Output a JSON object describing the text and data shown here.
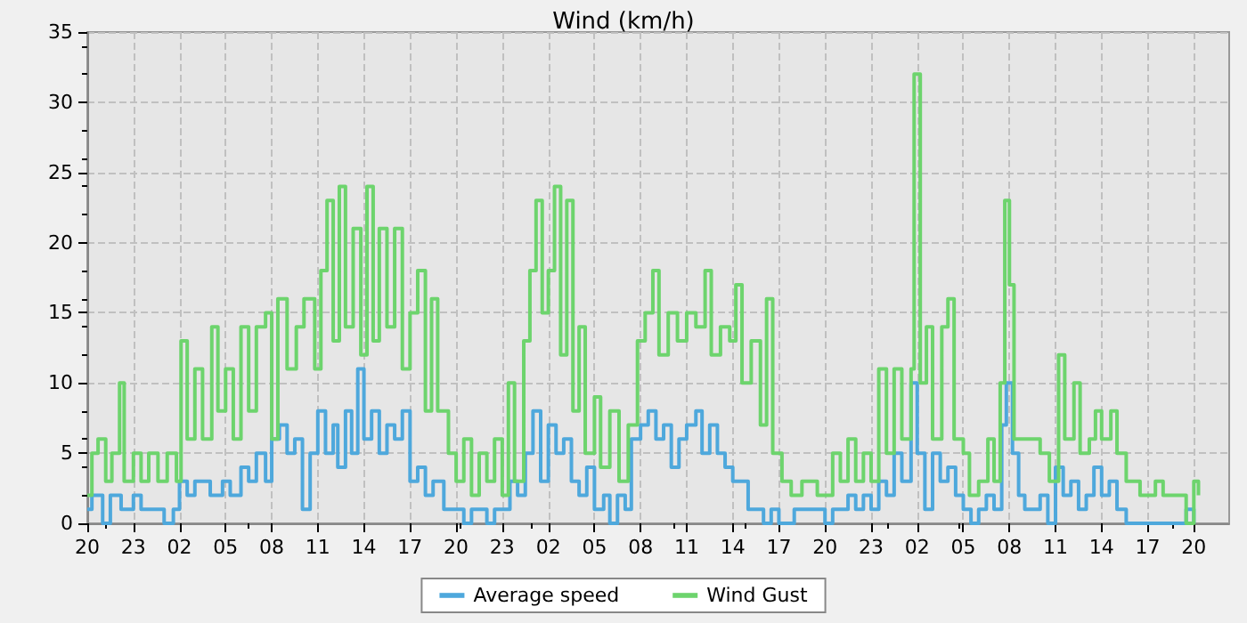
{
  "chart_data": {
    "type": "step",
    "title": "Wind (km/h)",
    "xlim": [
      "--01-01T20:00",
      "--01-04T22:18"
    ],
    "xticks": [
      {
        "value": "--01-01T20:00",
        "label": "20"
      },
      {
        "value": "--01-01T23:00",
        "label": "23"
      },
      {
        "value": "--01-02T02:00",
        "label": "02"
      },
      {
        "value": "--01-02T05:00",
        "label": "05"
      },
      {
        "value": "--01-02T08:00",
        "label": "08"
      },
      {
        "value": "--01-02T11:00",
        "label": "11"
      },
      {
        "value": "--01-02T14:00",
        "label": "14"
      },
      {
        "value": "--01-02T17:00",
        "label": "17"
      },
      {
        "value": "--01-02T20:00",
        "label": "20"
      },
      {
        "value": "--01-02T23:00",
        "label": "23"
      },
      {
        "value": "--01-03T02:00",
        "label": "02"
      },
      {
        "value": "--01-03T05:00",
        "label": "05"
      },
      {
        "value": "--01-03T08:00",
        "label": "08"
      },
      {
        "value": "--01-03T11:00",
        "label": "11"
      },
      {
        "value": "--01-03T14:00",
        "label": "14"
      },
      {
        "value": "--01-03T17:00",
        "label": "17"
      },
      {
        "value": "--01-03T20:00",
        "label": "20"
      },
      {
        "value": "--01-03T23:00",
        "label": "23"
      },
      {
        "value": "--01-04T02:00",
        "label": "02"
      },
      {
        "value": "--01-04T05:00",
        "label": "05"
      },
      {
        "value": "--01-04T08:00",
        "label": "08"
      },
      {
        "value": "--01-04T11:00",
        "label": "11"
      },
      {
        "value": "--01-04T14:00",
        "label": "14"
      },
      {
        "value": "--01-04T17:00",
        "label": "17"
      },
      {
        "value": "--01-04T20:00",
        "label": "20"
      }
    ],
    "ylim": [
      0,
      35
    ],
    "yticks": [
      0,
      5,
      10,
      15,
      20,
      25,
      30,
      35
    ],
    "grid": true,
    "legend": "bottom",
    "line_style": "solid",
    "marker": "none",
    "series": [
      {
        "name": "Average speed",
        "color": "#4ea8dc",
        "x": [
          "--01-01T20:00",
          "--01-01T20:18",
          "--01-01T21:00",
          "--01-01T21:30",
          "--01-01T22:12",
          "--01-01T23:00",
          "--01-01T23:30",
          "--01-02T00:30",
          "--01-02T01:00",
          "--01-02T01:36",
          "--01-02T02:00",
          "--01-02T02:30",
          "--01-02T03:00",
          "--01-02T04:00",
          "--01-02T04:48",
          "--01-02T05:18",
          "--01-02T06:00",
          "--01-02T06:30",
          "--01-02T07:00",
          "--01-02T07:36",
          "--01-02T08:00",
          "--01-02T08:30",
          "--01-02T09:00",
          "--01-02T09:30",
          "--01-02T10:00",
          "--01-02T10:30",
          "--01-02T11:00",
          "--01-02T11:30",
          "--01-02T12:00",
          "--01-02T12:18",
          "--01-02T12:48",
          "--01-02T13:12",
          "--01-02T13:36",
          "--01-02T14:00",
          "--01-02T14:30",
          "--01-02T15:00",
          "--01-02T15:30",
          "--01-02T16:00",
          "--01-02T16:30",
          "--01-02T17:00",
          "--01-02T17:30",
          "--01-02T18:00",
          "--01-02T18:30",
          "--01-02T19:12",
          "--01-02T20:00",
          "--01-02T20:30",
          "--01-02T21:00",
          "--01-02T22:00",
          "--01-02T22:30",
          "--01-02T23:00",
          "--01-02T23:30",
          "--01-03T00:00",
          "--01-03T00:30",
          "--01-03T01:00",
          "--01-03T01:30",
          "--01-03T02:00",
          "--01-03T02:30",
          "--01-03T03:00",
          "--01-03T03:30",
          "--01-03T04:00",
          "--01-03T04:30",
          "--01-03T05:00",
          "--01-03T05:36",
          "--01-03T06:00",
          "--01-03T06:30",
          "--01-03T07:00",
          "--01-03T07:24",
          "--01-03T08:00",
          "--01-03T08:30",
          "--01-03T09:00",
          "--01-03T09:30",
          "--01-03T10:00",
          "--01-03T10:30",
          "--01-03T11:00",
          "--01-03T11:36",
          "--01-03T12:00",
          "--01-03T12:30",
          "--01-03T13:00",
          "--01-03T13:30",
          "--01-03T14:00",
          "--01-03T15:00",
          "--01-03T15:30",
          "--01-03T16:00",
          "--01-03T16:30",
          "--01-03T17:00",
          "--01-03T18:00",
          "--01-03T19:00",
          "--01-03T20:00",
          "--01-03T20:30",
          "--01-03T21:30",
          "--01-03T22:00",
          "--01-03T22:30",
          "--01-03T23:00",
          "--01-03T23:30",
          "--01-04T00:00",
          "--01-04T00:30",
          "--01-04T01:00",
          "--01-04T01:36",
          "--01-04T02:00",
          "--01-04T02:30",
          "--01-04T03:00",
          "--01-04T03:30",
          "--01-04T04:00",
          "--01-04T04:30",
          "--01-04T05:00",
          "--01-04T05:30",
          "--01-04T06:00",
          "--01-04T06:30",
          "--01-04T07:00",
          "--01-04T07:30",
          "--01-04T07:48",
          "--01-04T08:12",
          "--01-04T08:36",
          "--01-04T09:00",
          "--01-04T10:00",
          "--01-04T10:30",
          "--01-04T11:00",
          "--01-04T11:30",
          "--01-04T12:00",
          "--01-04T12:30",
          "--01-04T13:00",
          "--01-04T13:30",
          "--01-04T14:00",
          "--01-04T14:30",
          "--01-04T15:00",
          "--01-04T15:36",
          "--01-04T19:00",
          "--01-04T19:30",
          "--01-04T20:00"
        ],
        "values": [
          1,
          2,
          0,
          2,
          1,
          2,
          1,
          1,
          0,
          1,
          3,
          2,
          3,
          2,
          3,
          2,
          4,
          3,
          5,
          3,
          6,
          7,
          5,
          6,
          1,
          5,
          8,
          5,
          7,
          4,
          8,
          5,
          11,
          6,
          8,
          5,
          7,
          6,
          8,
          3,
          4,
          2,
          3,
          1,
          1,
          0,
          1,
          0,
          1,
          1,
          3,
          2,
          5,
          8,
          3,
          7,
          5,
          6,
          3,
          2,
          4,
          1,
          2,
          0,
          2,
          1,
          6,
          7,
          8,
          6,
          7,
          4,
          6,
          7,
          8,
          5,
          7,
          5,
          4,
          3,
          1,
          1,
          0,
          1,
          0,
          1,
          1,
          0,
          1,
          2,
          1,
          2,
          1,
          3,
          2,
          5,
          3,
          10,
          5,
          1,
          5,
          3,
          4,
          2,
          1,
          0,
          1,
          2,
          1,
          7,
          10,
          5,
          2,
          1,
          2,
          0,
          4,
          2,
          3,
          1,
          2,
          4,
          2,
          3,
          1,
          0,
          0,
          1,
          0
        ]
      },
      {
        "name": "Wind Gust",
        "color": "#6dd46d",
        "x": [
          "--01-01T20:00",
          "--01-01T20:18",
          "--01-01T20:42",
          "--01-01T21:12",
          "--01-01T21:36",
          "--01-01T22:06",
          "--01-01T22:24",
          "--01-01T23:00",
          "--01-01T23:30",
          "--01-02T00:00",
          "--01-02T00:36",
          "--01-02T01:12",
          "--01-02T01:48",
          "--01-02T02:06",
          "--01-02T02:30",
          "--01-02T03:00",
          "--01-02T03:30",
          "--01-02T04:06",
          "--01-02T04:30",
          "--01-02T05:00",
          "--01-02T05:30",
          "--01-02T06:00",
          "--01-02T06:30",
          "--01-02T07:00",
          "--01-02T07:36",
          "--01-02T08:00",
          "--01-02T08:24",
          "--01-02T09:00",
          "--01-02T09:36",
          "--01-02T10:06",
          "--01-02T10:48",
          "--01-02T11:12",
          "--01-02T11:36",
          "--01-02T12:00",
          "--01-02T12:24",
          "--01-02T12:48",
          "--01-02T13:18",
          "--01-02T13:48",
          "--01-02T14:12",
          "--01-02T14:36",
          "--01-02T15:00",
          "--01-02T15:30",
          "--01-02T16:00",
          "--01-02T16:30",
          "--01-02T17:00",
          "--01-02T17:30",
          "--01-02T18:00",
          "--01-02T18:24",
          "--01-02T18:48",
          "--01-02T19:30",
          "--01-02T20:00",
          "--01-02T20:30",
          "--01-02T21:00",
          "--01-02T21:30",
          "--01-02T22:00",
          "--01-02T22:30",
          "--01-02T23:00",
          "--01-02T23:24",
          "--01-02T23:48",
          "--01-03T00:24",
          "--01-03T00:48",
          "--01-03T01:12",
          "--01-03T01:36",
          "--01-03T02:00",
          "--01-03T02:24",
          "--01-03T02:48",
          "--01-03T03:12",
          "--01-03T03:36",
          "--01-03T04:00",
          "--01-03T04:24",
          "--01-03T05:00",
          "--01-03T05:24",
          "--01-03T06:00",
          "--01-03T06:36",
          "--01-03T07:12",
          "--01-03T07:48",
          "--01-03T08:18",
          "--01-03T08:48",
          "--01-03T09:12",
          "--01-03T09:48",
          "--01-03T10:24",
          "--01-03T11:00",
          "--01-03T11:36",
          "--01-03T12:12",
          "--01-03T12:36",
          "--01-03T13:12",
          "--01-03T13:48",
          "--01-03T14:12",
          "--01-03T14:36",
          "--01-03T15:12",
          "--01-03T15:48",
          "--01-03T16:12",
          "--01-03T16:36",
          "--01-03T17:12",
          "--01-03T17:48",
          "--01-03T18:30",
          "--01-03T19:30",
          "--01-03T20:30",
          "--01-03T21:00",
          "--01-03T21:30",
          "--01-03T22:00",
          "--01-03T22:30",
          "--01-03T23:00",
          "--01-03T23:30",
          "--01-04T00:00",
          "--01-04T00:30",
          "--01-04T01:00",
          "--01-04T01:36",
          "--01-04T01:48",
          "--01-04T02:12",
          "--01-04T02:36",
          "--01-04T03:00",
          "--01-04T03:36",
          "--01-04T04:00",
          "--01-04T04:24",
          "--01-04T05:00",
          "--01-04T05:24",
          "--01-04T06:00",
          "--01-04T06:36",
          "--01-04T07:00",
          "--01-04T07:24",
          "--01-04T07:42",
          "--01-04T08:00",
          "--01-04T08:18",
          "--01-04T09:00",
          "--01-04T10:00",
          "--01-04T10:36",
          "--01-04T11:12",
          "--01-04T11:36",
          "--01-04T12:12",
          "--01-04T12:36",
          "--01-04T13:12",
          "--01-04T13:36",
          "--01-04T14:00",
          "--01-04T14:36",
          "--01-04T15:00",
          "--01-04T15:36",
          "--01-04T16:30",
          "--01-04T17:30",
          "--01-04T18:00",
          "--01-04T19:30",
          "--01-04T20:00",
          "--01-04T20:18"
        ],
        "values": [
          2,
          5,
          6,
          3,
          5,
          10,
          3,
          5,
          3,
          5,
          3,
          5,
          3,
          13,
          6,
          11,
          6,
          14,
          8,
          11,
          6,
          14,
          8,
          14,
          15,
          6,
          16,
          11,
          14,
          16,
          11,
          18,
          23,
          13,
          24,
          14,
          21,
          12,
          24,
          13,
          21,
          14,
          21,
          11,
          15,
          18,
          8,
          16,
          8,
          5,
          3,
          6,
          2,
          5,
          3,
          6,
          2,
          10,
          3,
          13,
          18,
          23,
          15,
          18,
          24,
          12,
          23,
          8,
          14,
          5,
          9,
          4,
          8,
          3,
          7,
          13,
          15,
          18,
          12,
          15,
          13,
          15,
          14,
          18,
          12,
          14,
          13,
          17,
          10,
          13,
          7,
          16,
          5,
          3,
          2,
          3,
          2,
          5,
          3,
          6,
          3,
          5,
          3,
          11,
          5,
          11,
          6,
          11,
          32,
          10,
          14,
          6,
          14,
          16,
          6,
          5,
          2,
          3,
          6,
          3,
          10,
          23,
          17,
          6,
          6,
          5,
          3,
          12,
          6,
          10,
          5,
          6,
          8,
          6,
          8,
          5,
          3,
          2,
          3,
          2,
          0,
          3,
          2
        ]
      }
    ]
  }
}
